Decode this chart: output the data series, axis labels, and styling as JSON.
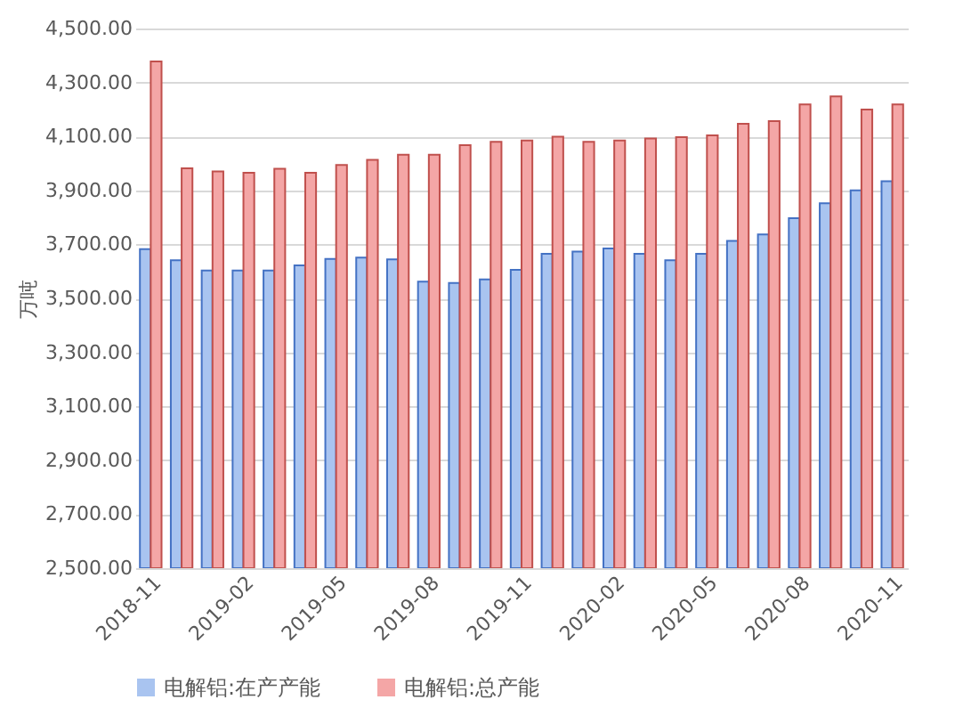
{
  "chart_data": {
    "type": "bar",
    "ylabel": "万吨",
    "categories": [
      "2018-11",
      null,
      null,
      "2019-02",
      null,
      null,
      "2019-05",
      null,
      null,
      "2019-08",
      null,
      null,
      "2019-11",
      null,
      null,
      "2020-02",
      null,
      null,
      "2020-05",
      null,
      null,
      "2020-08",
      null,
      null,
      "2020-11"
    ],
    "series": [
      {
        "name": "电解铝:在产产能",
        "color": "#a9c4f0",
        "values": [
          3682,
          3641,
          3603,
          3603,
          3603,
          3622,
          3646,
          3651,
          3644,
          3562,
          3557,
          3570,
          3606,
          3665,
          3673,
          3685,
          3665,
          3641,
          3665,
          3713,
          3737,
          3797,
          3852,
          3900,
          3934
        ]
      },
      {
        "name": "电解铝:总产能",
        "color": "#f4a6a6",
        "values": [
          4378,
          3982,
          3970,
          3965,
          3980,
          3965,
          3994,
          4013,
          4032,
          4032,
          4068,
          4080,
          4085,
          4099,
          4080,
          4085,
          4092,
          4097,
          4104,
          4147,
          4157,
          4219,
          4248,
          4200,
          4219
        ]
      }
    ],
    "ylim": [
      2500,
      4500
    ],
    "yticks": [
      {
        "value": 2500,
        "label": "2,500.00"
      },
      {
        "value": 2700,
        "label": "2,700.00"
      },
      {
        "value": 2900,
        "label": "2,900.00"
      },
      {
        "value": 3100,
        "label": "3,100.00"
      },
      {
        "value": 3300,
        "label": "3,300.00"
      },
      {
        "value": 3500,
        "label": "3,500.00"
      },
      {
        "value": 3700,
        "label": "3,700.00"
      },
      {
        "value": 3900,
        "label": "3,900.00"
      },
      {
        "value": 4100,
        "label": "4,100.00"
      },
      {
        "value": 4300,
        "label": "4,300.00"
      },
      {
        "value": 4500,
        "label": "4,500.00"
      }
    ],
    "grid": "y",
    "legend": "bottom"
  }
}
